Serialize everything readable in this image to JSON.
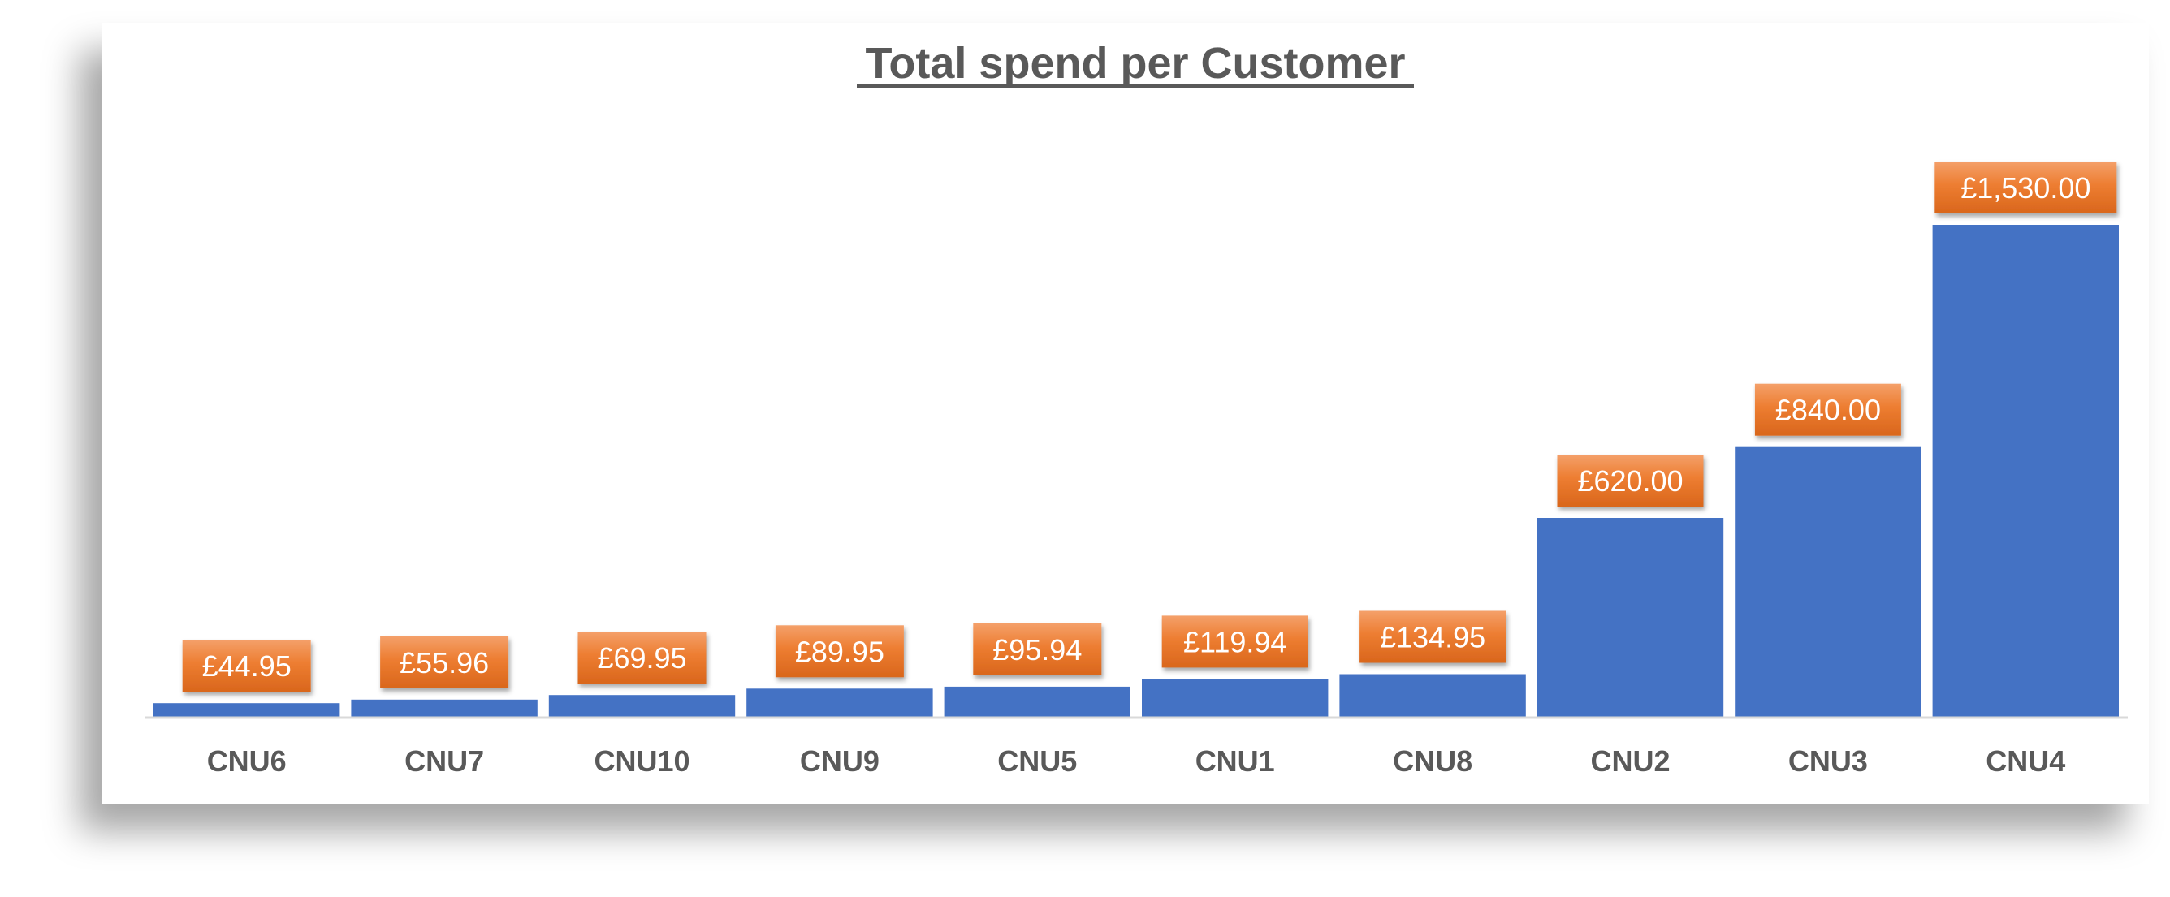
{
  "chart_data": {
    "type": "bar",
    "title": "Total spend per Customer",
    "xlabel": "",
    "ylabel": "",
    "categories": [
      "CNU6",
      "CNU7",
      "CNU10",
      "CNU9",
      "CNU5",
      "CNU1",
      "CNU8",
      "CNU2",
      "CNU3",
      "CNU4"
    ],
    "values": [
      44.95,
      55.96,
      69.95,
      89.95,
      95.94,
      119.94,
      134.95,
      620.0,
      840.0,
      1530.0
    ],
    "data_labels": [
      "£44.95",
      "£55.96",
      "£69.95",
      "£89.95",
      "£95.94",
      "£119.94",
      "£134.95",
      "£620.00",
      "£840.00",
      "£1,530.00"
    ],
    "ylim": [
      0,
      1530
    ],
    "grid": false,
    "legend": "none",
    "colors": {
      "bar": "#4472C4",
      "label_box": "#ED7D31",
      "label_text": "#FFFFFF",
      "axis_text": "#595959",
      "axis_line": "#D9D9D9"
    }
  }
}
